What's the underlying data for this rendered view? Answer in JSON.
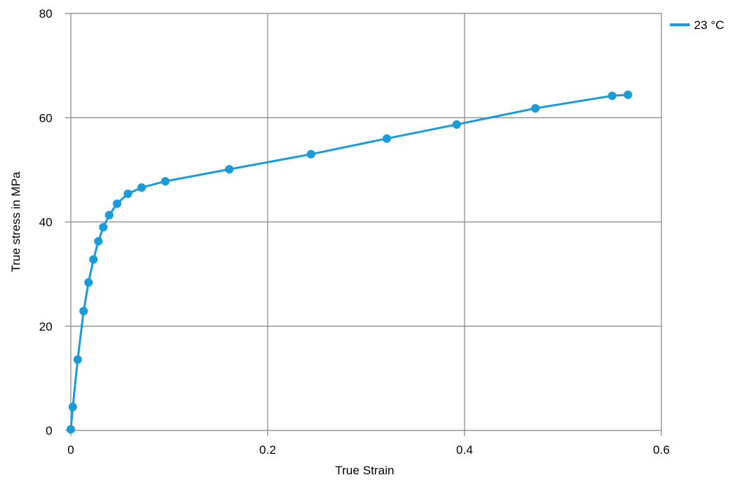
{
  "chart_data": {
    "type": "line",
    "title": "",
    "xlabel": "True Strain",
    "ylabel": "True stress in  MPa",
    "xlim": [
      0,
      0.6
    ],
    "ylim": [
      0,
      80
    ],
    "xticks": [
      0,
      0.2,
      0.4,
      0.6
    ],
    "xtick_labels": [
      "0",
      "0.2",
      "0.4",
      "0.6"
    ],
    "yticks": [
      0,
      20,
      40,
      60,
      80
    ],
    "ytick_labels": [
      "0",
      "20",
      "40",
      "60",
      "80"
    ],
    "grid": true,
    "legend_position": "top-right",
    "series": [
      {
        "name": "23 °C",
        "color": "#1a9cd8",
        "marker": "circle",
        "x": [
          0.0,
          0.002,
          0.007,
          0.013,
          0.018,
          0.023,
          0.028,
          0.033,
          0.039,
          0.047,
          0.058,
          0.072,
          0.096,
          0.161,
          0.244,
          0.321,
          0.392,
          0.472,
          0.55,
          0.566
        ],
        "y": [
          0.2,
          4.5,
          13.6,
          22.9,
          28.4,
          32.8,
          36.3,
          39.0,
          41.3,
          43.5,
          45.4,
          46.6,
          47.8,
          50.1,
          53.0,
          56.0,
          58.7,
          61.8,
          64.2,
          64.4
        ]
      }
    ]
  }
}
